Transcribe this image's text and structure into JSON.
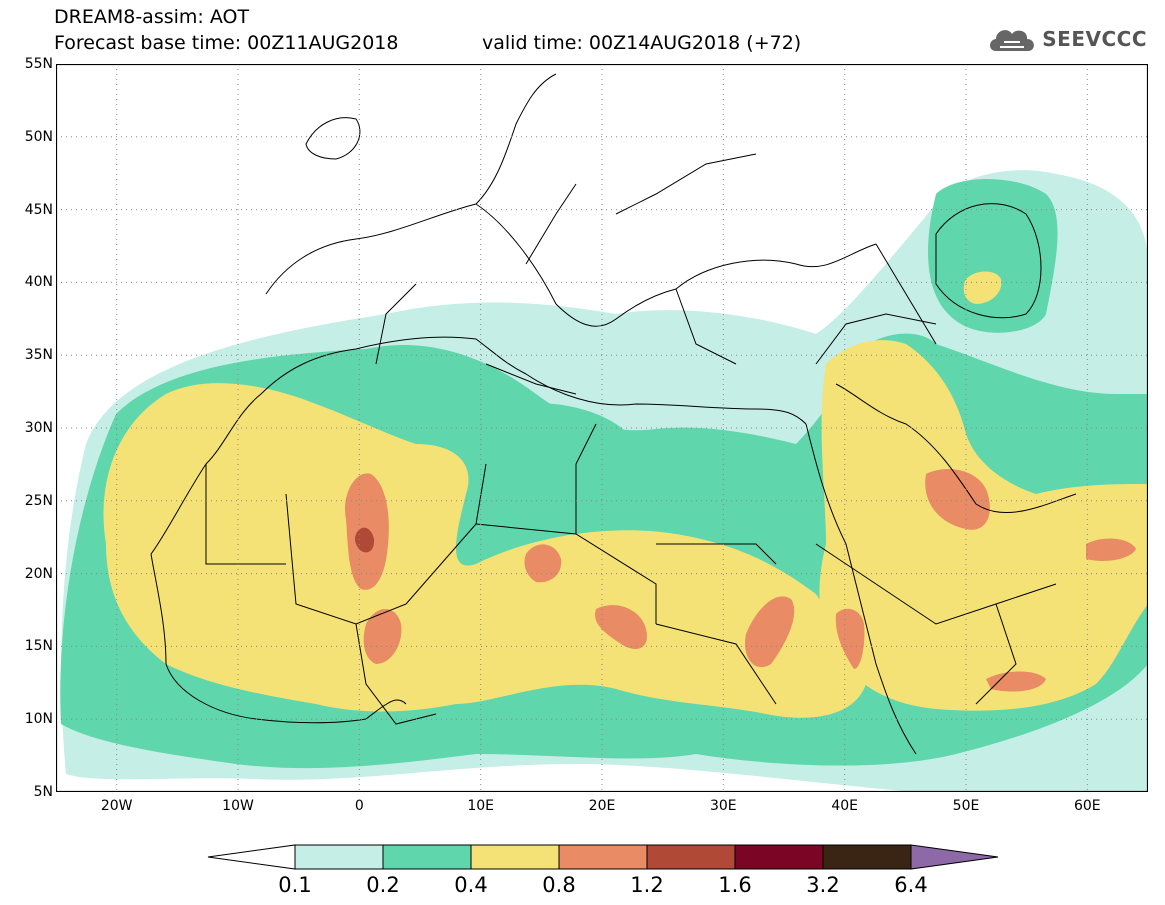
{
  "header": {
    "title_line1": "DREAM8-assim: AOT",
    "base_time": "Forecast base time: 00Z11AUG2018",
    "valid_time": "valid time: 00Z14AUG2018 (+72)"
  },
  "logo": {
    "text": "SEEVCCC",
    "icon": "cloud-icon"
  },
  "map": {
    "lat_labels": [
      "55N",
      "50N",
      "45N",
      "40N",
      "35N",
      "30N",
      "25N",
      "20N",
      "15N",
      "10N",
      "5N"
    ],
    "lon_labels": [
      "20W",
      "10W",
      "0",
      "10E",
      "20E",
      "30E",
      "40E",
      "50E",
      "60E"
    ],
    "lat_range": [
      5,
      55
    ],
    "lon_range": [
      -25,
      65
    ],
    "grid": "dotted"
  },
  "colorbar": {
    "levels": [
      "0.1",
      "0.2",
      "0.4",
      "0.8",
      "1.2",
      "1.6",
      "3.2",
      "6.4"
    ],
    "colors": [
      "#ffffff",
      "#c4eee6",
      "#5fd6ab",
      "#f5e277",
      "#e98b65",
      "#b04a37",
      "#7a0524",
      "#3a2413",
      "#8e69a8"
    ]
  }
}
